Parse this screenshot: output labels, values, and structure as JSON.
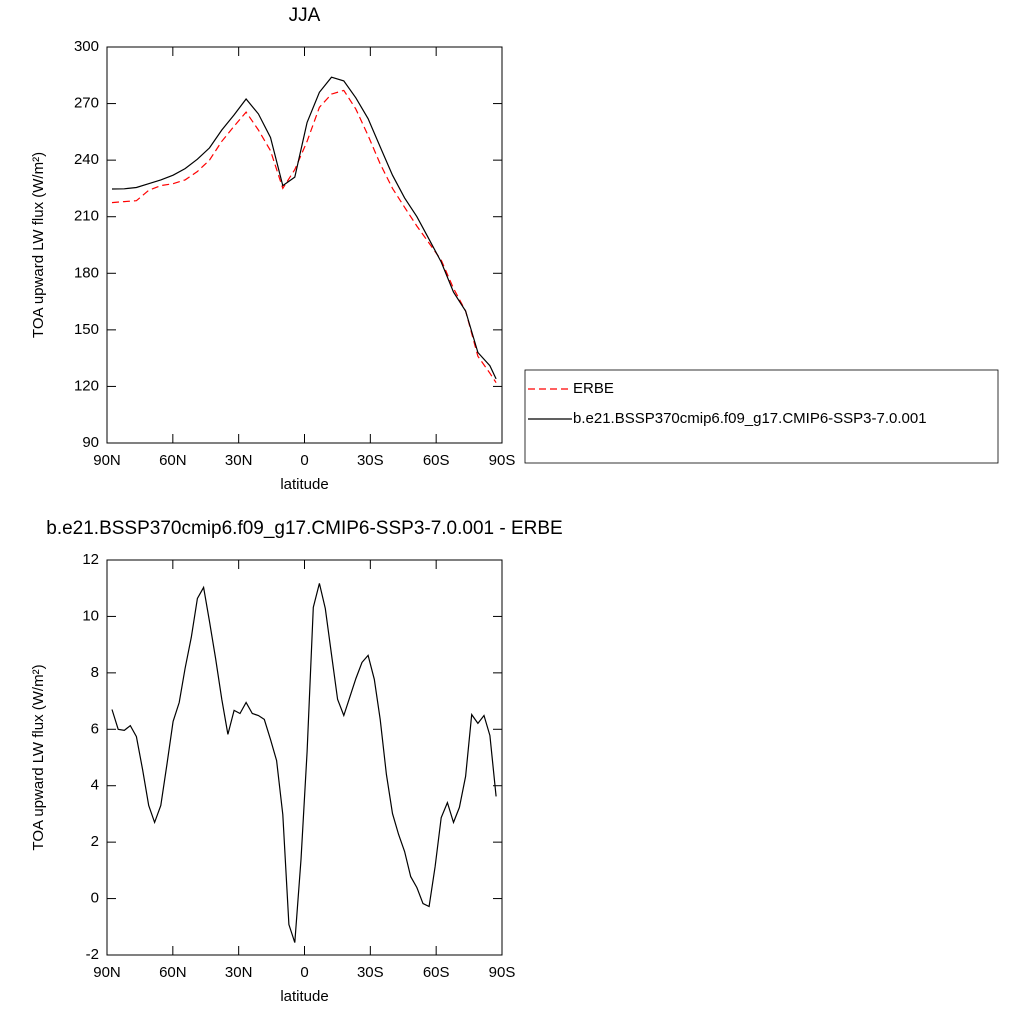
{
  "chart_data": [
    {
      "type": "line",
      "title": "JJA",
      "xlabel": "latitude",
      "ylabel": "TOA upward LW flux (W/m²)",
      "x": [
        87.7,
        82.1,
        76.6,
        71.0,
        65.5,
        59.9,
        54.4,
        48.8,
        43.3,
        37.7,
        32.1,
        26.6,
        21.0,
        15.5,
        9.9,
        4.4,
        -1.2,
        -6.8,
        -12.3,
        -17.9,
        -23.4,
        -29.0,
        -34.5,
        -40.1,
        -45.6,
        -51.2,
        -56.8,
        -62.3,
        -67.9,
        -73.4,
        -79.0,
        -84.5,
        -87.3
      ],
      "series": [
        {
          "name": "ERBE",
          "color": "#ff0000",
          "line_style": "dashed",
          "values": [
            217.5,
            218,
            218.5,
            224,
            226.5,
            227.5,
            229.5,
            234,
            240,
            250,
            258,
            265.5,
            256,
            245,
            225,
            235,
            250,
            268,
            275,
            277,
            267,
            253,
            238,
            225,
            215,
            205,
            196,
            187,
            172,
            160,
            136,
            127,
            122
          ]
        },
        {
          "name": "b.e21.BSSP370cmip6.f09_g17.CMIP6-SSP3-7.0.001",
          "color": "#000000",
          "line_style": "solid",
          "values": [
            224.7,
            224.8,
            225.5,
            227.5,
            229.5,
            232,
            235.5,
            240.5,
            246.5,
            256,
            264,
            272.4,
            264.5,
            252,
            226.5,
            231,
            260,
            276,
            284,
            282,
            273,
            262,
            247,
            232,
            220,
            210,
            198,
            186,
            170,
            160,
            138,
            131,
            124
          ]
        }
      ],
      "xlim": [
        90,
        -90
      ],
      "xticks": [
        {
          "value": 90,
          "label": "90N"
        },
        {
          "value": 60,
          "label": "60N"
        },
        {
          "value": 30,
          "label": "30N"
        },
        0,
        {
          "value": -30,
          "label": "30S"
        },
        {
          "value": -60,
          "label": "60S"
        },
        {
          "value": -90,
          "label": "90S"
        }
      ],
      "ylim": [
        90,
        300
      ],
      "yticks": [
        90,
        120,
        150,
        180,
        210,
        240,
        270,
        300
      ],
      "legend": "outside-right"
    },
    {
      "type": "line",
      "title": "b.e21.BSSP370cmip6.f09_g17.CMIP6-SSP3-7.0.001 - ERBE",
      "xlabel": "latitude",
      "ylabel": "TOA upward LW flux (W/m²)",
      "x": [
        87.7,
        84.9,
        82.1,
        79.4,
        76.6,
        73.8,
        71.0,
        68.3,
        65.5,
        62.7,
        59.9,
        57.1,
        54.4,
        51.6,
        48.8,
        46.0,
        43.3,
        40.5,
        37.7,
        34.9,
        32.1,
        29.4,
        26.6,
        23.8,
        21.0,
        18.3,
        15.5,
        12.7,
        9.9,
        7.1,
        4.4,
        1.6,
        -1.2,
        -4.0,
        -6.8,
        -9.5,
        -12.3,
        -15.1,
        -17.9,
        -20.6,
        -23.4,
        -26.2,
        -29.0,
        -31.8,
        -34.5,
        -37.3,
        -40.1,
        -42.9,
        -45.6,
        -48.4,
        -51.2,
        -54.0,
        -56.8,
        -59.5,
        -62.3,
        -65.1,
        -67.9,
        -70.6,
        -73.4,
        -76.2,
        -79.0,
        -81.8,
        -84.5,
        -87.3
      ],
      "values": [
        6.7,
        6.0,
        5.96,
        6.13,
        5.74,
        4.57,
        3.3,
        2.7,
        3.3,
        4.75,
        6.28,
        6.95,
        8.16,
        9.26,
        10.64,
        11.03,
        9.82,
        8.51,
        7.06,
        5.82,
        6.67,
        6.56,
        6.95,
        6.56,
        6.49,
        6.35,
        5.64,
        4.89,
        2.98,
        -0.92,
        -1.56,
        1.38,
        5.21,
        10.32,
        11.17,
        10.28,
        8.65,
        7.06,
        6.49,
        7.13,
        7.8,
        8.37,
        8.62,
        7.77,
        6.35,
        4.4,
        3.01,
        2.27,
        1.67,
        0.78,
        0.39,
        -0.18,
        -0.28,
        1.13,
        2.87,
        3.4,
        2.7,
        3.23,
        4.33,
        6.52,
        6.21,
        6.49,
        5.78,
        3.62
      ],
      "color": "#000000",
      "xlim": [
        90,
        -90
      ],
      "xticks": [
        {
          "value": 90,
          "label": "90N"
        },
        {
          "value": 60,
          "label": "60N"
        },
        {
          "value": 30,
          "label": "30N"
        },
        0,
        {
          "value": -30,
          "label": "30S"
        },
        {
          "value": -60,
          "label": "60S"
        },
        {
          "value": -90,
          "label": "90S"
        }
      ],
      "ylim": [
        -2,
        12
      ],
      "yticks": [
        -2,
        0,
        2,
        4,
        6,
        8,
        10,
        12
      ]
    }
  ]
}
